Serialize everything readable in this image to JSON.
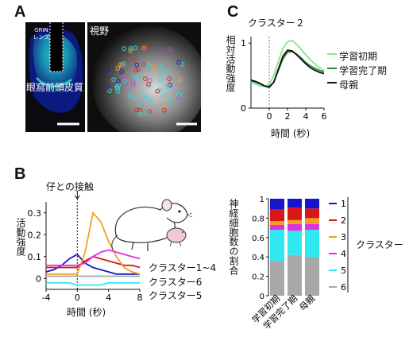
{
  "panelA": {
    "label": "A",
    "grin": "GRIN\nレンズ",
    "region": "眼窩前頭皮質",
    "fov": "視野"
  },
  "panelB": {
    "label": "B",
    "event": "仔との接触",
    "ylabel": "活動強度",
    "xlabel": "時間 (秒)",
    "cluster_group": "クラスター1~4",
    "cluster6": "クラスター6",
    "cluster5": "クラスター5",
    "stack_ylabel": "神経細胞数の割合",
    "stack_title": "クラスター",
    "stack_categories": [
      "学習初期",
      "学習完了期",
      "母親"
    ]
  },
  "panelC": {
    "label": "C",
    "title": "クラスター２",
    "ylabel": "相対活動強度",
    "xlabel": "時間 (秒)",
    "legend": [
      "学習初期",
      "学習完了期",
      "母親"
    ]
  },
  "colors": {
    "cluster1": "#1515d0",
    "cluster2": "#d81818",
    "cluster3": "#f0a020",
    "cluster4": "#e030e0",
    "cluster5": "#30e8f0",
    "cluster6": "#a8a8a8",
    "early": "#8ee28e",
    "done": "#1f8a3c",
    "mother": "#111111"
  },
  "chart_data": [
    {
      "type": "line",
      "id": "B-traces",
      "xlabel": "時間 (秒)",
      "ylabel": "活動強度",
      "xlim": [
        -4,
        8
      ],
      "ylim": [
        -0.05,
        0.35
      ],
      "xticks": [
        -4,
        0,
        4,
        8
      ],
      "yticks": [
        0,
        0.1,
        0.2,
        0.3
      ],
      "x": [
        -4,
        -3,
        -2,
        -1,
        0,
        1,
        2,
        3,
        4,
        5,
        6,
        7,
        8
      ],
      "series": [
        {
          "name": "1",
          "values": [
            0.03,
            0.04,
            0.06,
            0.09,
            0.11,
            0.07,
            0.05,
            0.04,
            0.03,
            0.02,
            0.02,
            0.02,
            0.02
          ]
        },
        {
          "name": "2",
          "values": [
            0.05,
            0.05,
            0.05,
            0.05,
            0.05,
            0.08,
            0.1,
            0.09,
            0.08,
            0.07,
            0.06,
            0.06,
            0.05
          ]
        },
        {
          "name": "3",
          "values": [
            0.02,
            0.02,
            0.02,
            0.02,
            0.02,
            0.12,
            0.3,
            0.26,
            0.17,
            0.1,
            0.05,
            0.03,
            0.02
          ]
        },
        {
          "name": "4",
          "values": [
            0.06,
            0.06,
            0.06,
            0.06,
            0.06,
            0.07,
            0.1,
            0.12,
            0.13,
            0.12,
            0.11,
            0.1,
            0.09
          ]
        },
        {
          "name": "5",
          "values": [
            -0.02,
            -0.02,
            -0.02,
            -0.02,
            -0.03,
            -0.03,
            -0.03,
            -0.03,
            -0.02,
            -0.02,
            -0.02,
            -0.02,
            -0.02
          ]
        },
        {
          "name": "6",
          "values": [
            0.01,
            0.01,
            0.01,
            0.01,
            0.01,
            0.01,
            0.01,
            0.01,
            0.01,
            0.01,
            0.01,
            0.01,
            0.01
          ]
        }
      ]
    },
    {
      "type": "bar",
      "id": "B-stacked",
      "ylabel": "神経細胞数の割合",
      "categories": [
        "学習初期",
        "学習完了期",
        "母親"
      ],
      "ylim": [
        0,
        1
      ],
      "yticks": [
        0,
        0.2,
        0.4,
        0.6,
        0.8,
        1
      ],
      "stacked": true,
      "series": [
        {
          "name": "6",
          "values": [
            0.36,
            0.42,
            0.4
          ]
        },
        {
          "name": "5",
          "values": [
            0.32,
            0.25,
            0.28
          ]
        },
        {
          "name": "4",
          "values": [
            0.05,
            0.07,
            0.06
          ]
        },
        {
          "name": "3",
          "values": [
            0.04,
            0.04,
            0.06
          ]
        },
        {
          "name": "2",
          "values": [
            0.12,
            0.13,
            0.1
          ]
        },
        {
          "name": "1",
          "values": [
            0.11,
            0.09,
            0.1
          ]
        }
      ]
    },
    {
      "type": "line",
      "id": "C-cluster2",
      "title": "クラスター２",
      "xlabel": "時間 (秒)",
      "ylabel": "相対活動強度",
      "xlim": [
        -2,
        6
      ],
      "ylim": [
        0,
        1.1
      ],
      "xticks": [
        0,
        2,
        4,
        6
      ],
      "yticks": [
        0,
        1
      ],
      "x": [
        -2,
        -1.5,
        -1,
        -0.5,
        0,
        0.5,
        1,
        1.5,
        2,
        2.5,
        3,
        3.5,
        4,
        4.5,
        5,
        5.5,
        6
      ],
      "series": [
        {
          "name": "学習初期",
          "values": [
            0.4,
            0.37,
            0.34,
            0.33,
            0.37,
            0.5,
            0.72,
            0.92,
            1.02,
            1.04,
            0.98,
            0.9,
            0.82,
            0.74,
            0.68,
            0.62,
            0.58
          ]
        },
        {
          "name": "学習完了期",
          "values": [
            0.42,
            0.4,
            0.37,
            0.34,
            0.33,
            0.4,
            0.58,
            0.76,
            0.86,
            0.87,
            0.83,
            0.77,
            0.7,
            0.65,
            0.61,
            0.58,
            0.56
          ]
        },
        {
          "name": "母親",
          "values": [
            0.43,
            0.41,
            0.38,
            0.34,
            0.32,
            0.4,
            0.6,
            0.8,
            0.89,
            0.88,
            0.82,
            0.75,
            0.68,
            0.62,
            0.58,
            0.55,
            0.53
          ]
        }
      ]
    }
  ]
}
